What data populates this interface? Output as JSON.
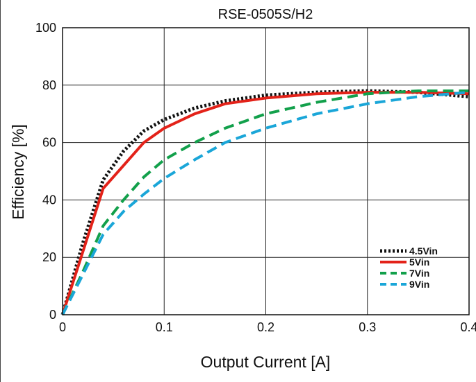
{
  "chart_data": {
    "type": "line",
    "title": "RSE-0505S/H2",
    "xlabel": "Output Current [A]",
    "ylabel": "Efficiency [%]",
    "xlim": [
      0,
      0.4
    ],
    "ylim": [
      0,
      100
    ],
    "x_ticks": [
      0,
      0.1,
      0.2,
      0.3,
      0.4
    ],
    "x_tick_labels": [
      "0",
      "0.1",
      "0.2",
      "0.3",
      "0.4"
    ],
    "y_ticks": [
      0,
      20,
      40,
      60,
      80,
      100
    ],
    "y_tick_labels": [
      "0",
      "20",
      "40",
      "60",
      "80",
      "100"
    ],
    "grid": true,
    "legend_position": "bottom-right",
    "series": [
      {
        "name": "4.5Vin",
        "color": "#111111",
        "dash": "dotted",
        "x": [
          0,
          0.02,
          0.04,
          0.06,
          0.08,
          0.1,
          0.13,
          0.16,
          0.2,
          0.25,
          0.3,
          0.35,
          0.4
        ],
        "y": [
          0,
          25,
          47,
          57,
          64,
          68,
          72,
          74.5,
          76.5,
          77.5,
          78,
          77.5,
          76
        ]
      },
      {
        "name": "5Vin",
        "color": "#e32219",
        "dash": "solid",
        "x": [
          0,
          0.02,
          0.04,
          0.06,
          0.08,
          0.1,
          0.13,
          0.16,
          0.2,
          0.25,
          0.3,
          0.35,
          0.4
        ],
        "y": [
          0,
          22,
          44,
          52,
          60,
          65,
          70,
          73.5,
          75.5,
          77,
          77.5,
          77.5,
          77
        ]
      },
      {
        "name": "7Vin",
        "color": "#12a04b",
        "dash": "dashed",
        "x": [
          0,
          0.02,
          0.04,
          0.06,
          0.08,
          0.1,
          0.13,
          0.16,
          0.2,
          0.25,
          0.3,
          0.35,
          0.4
        ],
        "y": [
          0,
          15,
          31,
          40,
          48,
          54,
          60,
          65,
          70,
          74,
          77,
          78,
          78
        ]
      },
      {
        "name": "9Vin",
        "color": "#1aa6d8",
        "dash": "dashed",
        "x": [
          0,
          0.02,
          0.04,
          0.06,
          0.08,
          0.1,
          0.13,
          0.16,
          0.2,
          0.25,
          0.3,
          0.35,
          0.4
        ],
        "y": [
          0,
          14,
          28,
          36,
          42,
          47.5,
          54,
          60,
          65,
          70,
          73.5,
          76,
          77.5
        ]
      }
    ]
  }
}
